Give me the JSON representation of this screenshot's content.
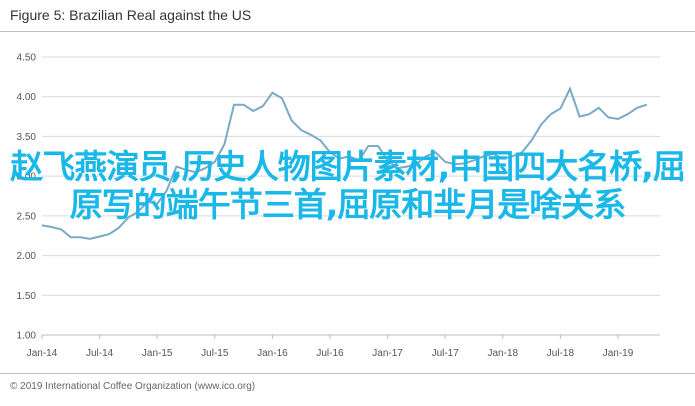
{
  "figure": {
    "title": "Figure 5: Brazilian Real against the US",
    "copyright": "© 2019 International Coffee Organization (www.ico.org)",
    "overlay_text": "赵飞燕演员,历史人物图片素材,中国四大名桥,屈原写的端午节三首,屈原和芈月是啥关系"
  },
  "colors": {
    "line": "#7aaac4",
    "grid": "#d9d9d9",
    "overlay": "#19b8e8"
  },
  "chart_data": {
    "type": "line",
    "title": "",
    "xlabel": "",
    "ylabel": "",
    "ylim": [
      1.0,
      4.5
    ],
    "yticks": [
      "1.00",
      "1.50",
      "2.00",
      "2.50",
      "3.00",
      "3.50",
      "4.00",
      "4.50"
    ],
    "xticks": [
      "Jan-14",
      "Jul-14",
      "Jan-15",
      "Jul-15",
      "Jan-16",
      "Jul-16",
      "Jan-17",
      "Jul-17",
      "Jan-18",
      "Jul-18",
      "Jan-19"
    ],
    "grid": true,
    "series": [
      {
        "name": "",
        "x": [
          "2014-01",
          "2014-02",
          "2014-03",
          "2014-04",
          "2014-05",
          "2014-06",
          "2014-07",
          "2014-08",
          "2014-09",
          "2014-10",
          "2014-11",
          "2014-12",
          "2015-01",
          "2015-02",
          "2015-03",
          "2015-04",
          "2015-05",
          "2015-06",
          "2015-07",
          "2015-08",
          "2015-09",
          "2015-10",
          "2015-11",
          "2015-12",
          "2016-01",
          "2016-02",
          "2016-03",
          "2016-04",
          "2016-05",
          "2016-06",
          "2016-07",
          "2016-08",
          "2016-09",
          "2016-10",
          "2016-11",
          "2016-12",
          "2017-01",
          "2017-02",
          "2017-03",
          "2017-04",
          "2017-05",
          "2017-06",
          "2017-07",
          "2017-08",
          "2017-09",
          "2017-10",
          "2017-11",
          "2017-12",
          "2018-01",
          "2018-02",
          "2018-03",
          "2018-04",
          "2018-05",
          "2018-06",
          "2018-07",
          "2018-08",
          "2018-09",
          "2018-10",
          "2018-11",
          "2018-12",
          "2019-01",
          "2019-02",
          "2019-03",
          "2019-04"
        ],
        "values": [
          2.38,
          2.36,
          2.33,
          2.23,
          2.23,
          2.21,
          2.24,
          2.27,
          2.35,
          2.48,
          2.55,
          2.68,
          2.65,
          2.82,
          3.12,
          3.08,
          3.05,
          3.1,
          3.18,
          3.4,
          3.9,
          3.9,
          3.82,
          3.88,
          4.05,
          3.98,
          3.7,
          3.58,
          3.52,
          3.45,
          3.3,
          3.22,
          3.25,
          3.2,
          3.38,
          3.38,
          3.2,
          3.1,
          3.12,
          3.15,
          3.25,
          3.3,
          3.18,
          3.15,
          3.16,
          3.2,
          3.25,
          3.28,
          3.22,
          3.25,
          3.3,
          3.45,
          3.65,
          3.78,
          3.85,
          4.1,
          3.75,
          3.78,
          3.86,
          3.74,
          3.72,
          3.78,
          3.86,
          3.9
        ]
      }
    ]
  }
}
